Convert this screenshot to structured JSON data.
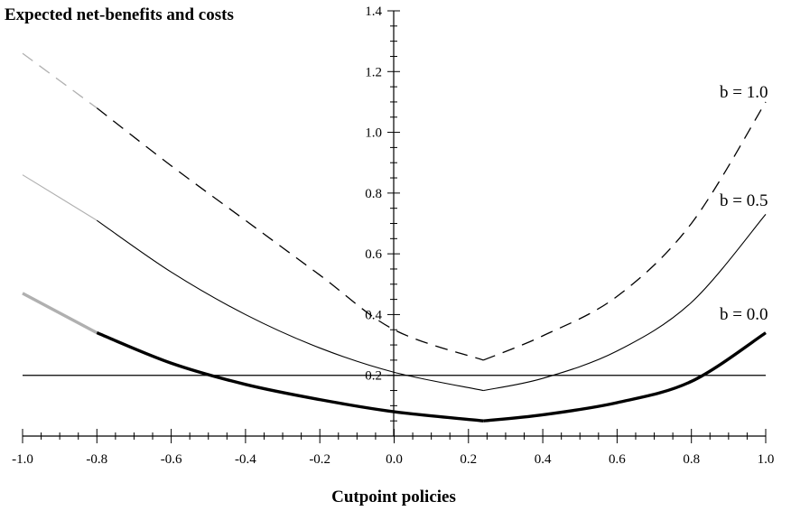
{
  "chart_data": {
    "type": "line",
    "title": "Expected net-benefits and costs",
    "xlabel": "Cutpoint policies",
    "ylabel": "",
    "xlim": [
      -1.0,
      1.0
    ],
    "ylim": [
      0.0,
      1.4
    ],
    "x_ticks": [
      "-1.0",
      "-0.8",
      "-0.6",
      "-0.4",
      "-0.2",
      "0.0",
      "0.2",
      "0.4",
      "0.6",
      "0.8",
      "1.0"
    ],
    "y_ticks": [
      "0.2",
      "0.4",
      "0.6",
      "0.8",
      "1.0",
      "1.2",
      "1.4"
    ],
    "reference_line": {
      "y": 0.2
    },
    "series": [
      {
        "name": "b = 1.0",
        "style": "dashed",
        "color": "#000000",
        "light_segment_color": "#b0b0b0",
        "light_segment_until_x": -0.8,
        "x": [
          -1.0,
          -0.8,
          -0.6,
          -0.4,
          -0.2,
          0.0,
          0.24,
          0.4,
          0.6,
          0.8,
          1.0
        ],
        "values": [
          1.26,
          1.08,
          0.89,
          0.71,
          0.53,
          0.35,
          0.25,
          0.33,
          0.46,
          0.7,
          1.1
        ]
      },
      {
        "name": "b = 0.5",
        "style": "thin",
        "color": "#000000",
        "light_segment_color": "#b0b0b0",
        "light_segment_until_x": -0.8,
        "x": [
          -1.0,
          -0.8,
          -0.6,
          -0.4,
          -0.2,
          0.0,
          0.24,
          0.4,
          0.6,
          0.8,
          1.0
        ],
        "values": [
          0.86,
          0.71,
          0.54,
          0.4,
          0.29,
          0.21,
          0.15,
          0.19,
          0.28,
          0.44,
          0.73
        ]
      },
      {
        "name": "b = 0.0",
        "style": "thick",
        "color": "#000000",
        "light_segment_color": "#b0b0b0",
        "light_segment_until_x": -0.8,
        "x": [
          -1.0,
          -0.8,
          -0.6,
          -0.4,
          -0.2,
          0.0,
          0.24,
          0.4,
          0.6,
          0.8,
          1.0
        ],
        "values": [
          0.47,
          0.34,
          0.24,
          0.17,
          0.12,
          0.08,
          0.05,
          0.07,
          0.11,
          0.18,
          0.34
        ]
      }
    ]
  }
}
